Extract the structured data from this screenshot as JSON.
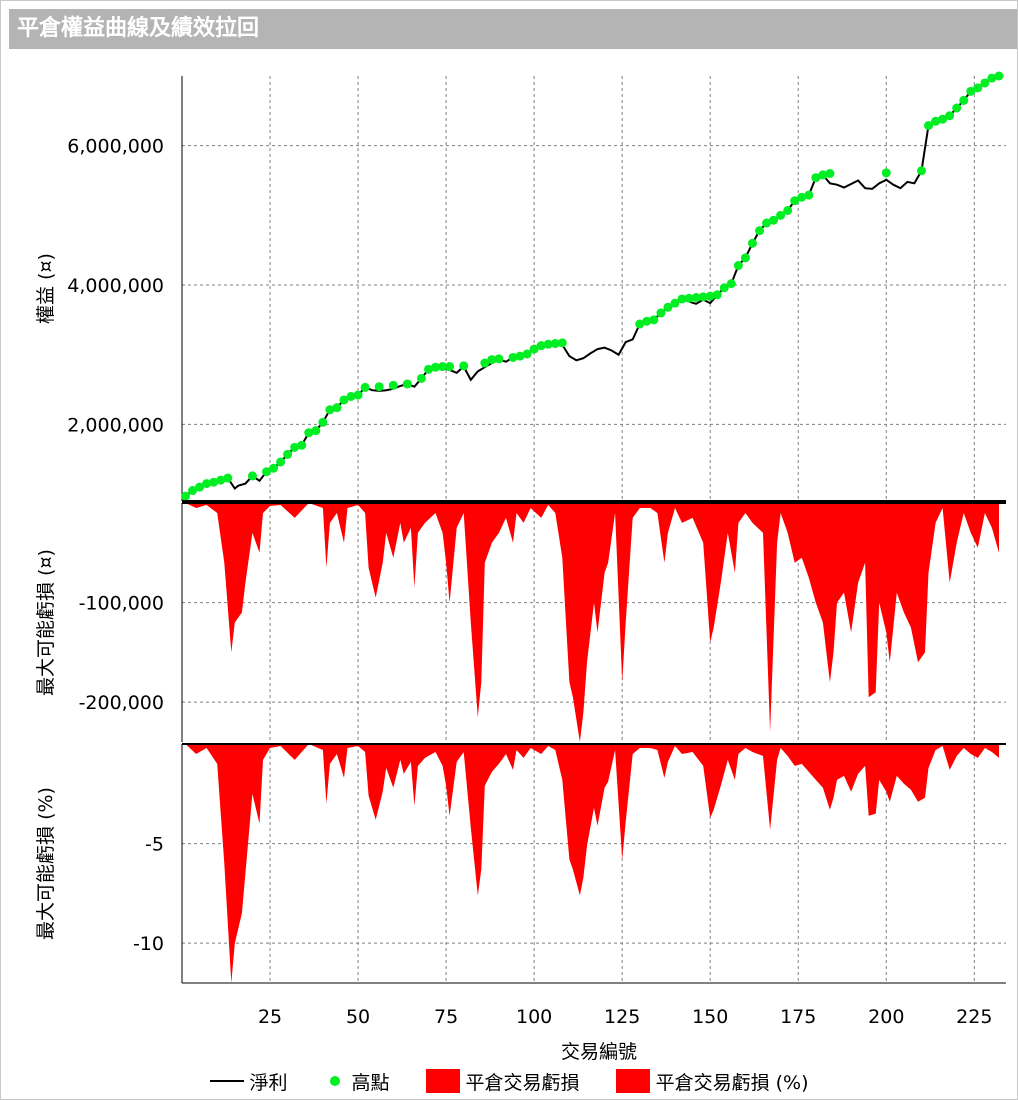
{
  "window": {
    "title": "平倉權益曲線及績效拉回"
  },
  "colors": {
    "line": "#000000",
    "peak": "#00ee22",
    "drawdown": "#ff0000",
    "grid": "#808080"
  },
  "chart_data": [
    {
      "type": "line",
      "title": "",
      "ylabel": "權益 (¤)",
      "ylim": [
        0,
        7000000
      ],
      "yticks": [
        2000000,
        4000000,
        6000000
      ],
      "ytick_labels": [
        "2,000,000",
        "4,000,000",
        "6,000,000"
      ],
      "series": [
        {
          "name": "淨利",
          "x": [
            1,
            3,
            5,
            7,
            9,
            11,
            13,
            15,
            16,
            18,
            20,
            22,
            24,
            26,
            28,
            30,
            32,
            34,
            36,
            38,
            40,
            42,
            44,
            46,
            48,
            50,
            52,
            54,
            56,
            58,
            60,
            62,
            64,
            66,
            68,
            70,
            72,
            74,
            76,
            78,
            80,
            82,
            84,
            86,
            88,
            90,
            92,
            94,
            96,
            98,
            100,
            102,
            104,
            106,
            108,
            110,
            112,
            114,
            116,
            118,
            120,
            122,
            124,
            126,
            128,
            130,
            132,
            134,
            136,
            138,
            140,
            142,
            144,
            146,
            148,
            150,
            152,
            154,
            156,
            158,
            160,
            162,
            164,
            166,
            168,
            170,
            172,
            174,
            176,
            178,
            180,
            182,
            184,
            186,
            188,
            190,
            192,
            194,
            196,
            198,
            200,
            202,
            204,
            206,
            208,
            210,
            212,
            214,
            216,
            218,
            220,
            222,
            224,
            226,
            228,
            230,
            232
          ],
          "values": [
            970000,
            1050000,
            1100000,
            1150000,
            1170000,
            1200000,
            1230000,
            1080000,
            1120000,
            1150000,
            1260000,
            1190000,
            1320000,
            1370000,
            1460000,
            1570000,
            1670000,
            1700000,
            1880000,
            1910000,
            2030000,
            2210000,
            2240000,
            2350000,
            2400000,
            2420000,
            2530000,
            2490000,
            2480000,
            2490000,
            2510000,
            2550000,
            2580000,
            2540000,
            2660000,
            2790000,
            2820000,
            2810000,
            2780000,
            2740000,
            2830000,
            2640000,
            2760000,
            2820000,
            2880000,
            2930000,
            2900000,
            2960000,
            2980000,
            3010000,
            3080000,
            3130000,
            3150000,
            3160000,
            3140000,
            2980000,
            2920000,
            2950000,
            3020000,
            3080000,
            3100000,
            3060000,
            3000000,
            3180000,
            3220000,
            3440000,
            3480000,
            3500000,
            3600000,
            3680000,
            3740000,
            3800000,
            3760000,
            3730000,
            3790000,
            3740000,
            3860000,
            3960000,
            4020000,
            4280000,
            4390000,
            4600000,
            4780000,
            4890000,
            4930000,
            5000000,
            5070000,
            5210000,
            5260000,
            5290000,
            5540000,
            5580000,
            5460000,
            5440000,
            5400000,
            5450000,
            5500000,
            5390000,
            5380000,
            5460000,
            5510000,
            5440000,
            5390000,
            5480000,
            5460000,
            5640000,
            6290000,
            6350000,
            6380000,
            6430000,
            6540000,
            6650000,
            6780000,
            6830000,
            6900000,
            6970000,
            7000000
          ]
        },
        {
          "name": "高點",
          "x": [
            1,
            3,
            5,
            7,
            9,
            11,
            13,
            20,
            24,
            26,
            28,
            30,
            32,
            34,
            36,
            38,
            40,
            42,
            44,
            46,
            48,
            50,
            52,
            56,
            60,
            64,
            68,
            70,
            72,
            74,
            76,
            80,
            86,
            88,
            90,
            94,
            96,
            98,
            100,
            102,
            104,
            106,
            108,
            130,
            132,
            134,
            136,
            138,
            140,
            142,
            144,
            146,
            148,
            150,
            152,
            154,
            156,
            158,
            160,
            162,
            164,
            166,
            168,
            170,
            172,
            174,
            176,
            178,
            180,
            182,
            184,
            200,
            210,
            212,
            214,
            216,
            218,
            220,
            222,
            224,
            226,
            228,
            230,
            232
          ],
          "values": [
            970000,
            1050000,
            1100000,
            1150000,
            1170000,
            1200000,
            1230000,
            1260000,
            1320000,
            1370000,
            1460000,
            1570000,
            1670000,
            1700000,
            1880000,
            1910000,
            2030000,
            2210000,
            2240000,
            2350000,
            2400000,
            2420000,
            2530000,
            2540000,
            2560000,
            2580000,
            2660000,
            2790000,
            2820000,
            2830000,
            2830000,
            2840000,
            2880000,
            2930000,
            2940000,
            2960000,
            2980000,
            3010000,
            3080000,
            3130000,
            3150000,
            3160000,
            3170000,
            3440000,
            3480000,
            3500000,
            3600000,
            3680000,
            3740000,
            3800000,
            3810000,
            3820000,
            3830000,
            3840000,
            3860000,
            3960000,
            4020000,
            4280000,
            4390000,
            4600000,
            4780000,
            4890000,
            4930000,
            5000000,
            5070000,
            5210000,
            5260000,
            5290000,
            5540000,
            5580000,
            5600000,
            5610000,
            5640000,
            6290000,
            6350000,
            6380000,
            6430000,
            6540000,
            6650000,
            6780000,
            6830000,
            6900000,
            6970000,
            7000000
          ]
        }
      ]
    },
    {
      "type": "area",
      "ylabel": "最大可能虧損 (¤)",
      "ylim": [
        -240000,
        0
      ],
      "yticks": [
        -100000,
        -200000
      ],
      "ytick_labels": [
        "-100,000",
        "-200,000"
      ],
      "series": [
        {
          "name": "平倉交易虧損",
          "x": [
            1,
            4,
            7,
            10,
            12,
            14,
            15,
            17,
            18,
            20,
            22,
            23,
            25,
            28,
            32,
            36,
            40,
            41,
            42,
            44,
            46,
            47,
            50,
            52,
            53,
            55,
            57,
            58,
            60,
            62,
            63,
            65,
            66,
            67,
            69,
            72,
            74,
            75,
            76,
            78,
            80,
            82,
            84,
            85,
            86,
            88,
            90,
            92,
            94,
            95,
            97,
            99,
            102,
            104,
            106,
            108,
            110,
            111,
            113,
            114,
            115,
            117,
            118,
            120,
            121,
            123,
            125,
            126,
            128,
            130,
            133,
            135,
            137,
            138,
            140,
            142,
            145,
            148,
            150,
            151,
            153,
            155,
            157,
            158,
            160,
            162,
            165,
            167,
            169,
            170,
            172,
            174,
            176,
            178,
            180,
            182,
            184,
            185,
            186,
            188,
            190,
            192,
            194,
            195,
            197,
            198,
            200,
            201,
            203,
            205,
            207,
            209,
            211,
            212,
            214,
            216,
            218,
            220,
            222,
            224,
            226,
            228,
            230,
            232
          ],
          "values": [
            0,
            -5000,
            -2000,
            -10000,
            -60000,
            -150000,
            -120000,
            -110000,
            -80000,
            -30000,
            -50000,
            -10000,
            -3000,
            -2000,
            -15000,
            0,
            -5000,
            -65000,
            -20000,
            -10000,
            -40000,
            -5000,
            -2000,
            -10000,
            -65000,
            -95000,
            -60000,
            -30000,
            -55000,
            -20000,
            -40000,
            -25000,
            -85000,
            -30000,
            -20000,
            -10000,
            -30000,
            -60000,
            -100000,
            -25000,
            -10000,
            -120000,
            -215000,
            -180000,
            -60000,
            -40000,
            -30000,
            -15000,
            -40000,
            -10000,
            -20000,
            -5000,
            -15000,
            -2000,
            -10000,
            -55000,
            -180000,
            -195000,
            -240000,
            -210000,
            -160000,
            -100000,
            -130000,
            -70000,
            -60000,
            -10000,
            -180000,
            -120000,
            -15000,
            -5000,
            -5000,
            -10000,
            -60000,
            -30000,
            -5000,
            -20000,
            -15000,
            -40000,
            -140000,
            -125000,
            -80000,
            -30000,
            -70000,
            -20000,
            -10000,
            -20000,
            -30000,
            -230000,
            -40000,
            -10000,
            -30000,
            -60000,
            -55000,
            -75000,
            -100000,
            -120000,
            -180000,
            -150000,
            -100000,
            -90000,
            -130000,
            -80000,
            -60000,
            -195000,
            -190000,
            -100000,
            -130000,
            -160000,
            -90000,
            -110000,
            -125000,
            -160000,
            -150000,
            -70000,
            -20000,
            -5000,
            -80000,
            -40000,
            -10000,
            -30000,
            -45000,
            -10000,
            -25000,
            -50000
          ]
        }
      ]
    },
    {
      "type": "area",
      "ylabel": "最大可能虧損 (%)",
      "ylim": [
        -12,
        0
      ],
      "yticks": [
        -5,
        -10
      ],
      "ytick_labels": [
        "-5",
        "-10"
      ],
      "series": [
        {
          "name": "平倉交易虧損 (%)",
          "x": [
            1,
            4,
            7,
            10,
            12,
            14,
            15,
            17,
            18,
            20,
            22,
            23,
            25,
            28,
            32,
            36,
            40,
            41,
            42,
            44,
            46,
            47,
            50,
            52,
            53,
            55,
            57,
            58,
            60,
            62,
            63,
            65,
            66,
            67,
            69,
            72,
            74,
            75,
            76,
            78,
            80,
            82,
            84,
            85,
            86,
            88,
            90,
            92,
            94,
            95,
            97,
            99,
            102,
            104,
            106,
            108,
            110,
            111,
            113,
            114,
            115,
            117,
            118,
            120,
            121,
            123,
            125,
            126,
            128,
            130,
            133,
            135,
            137,
            138,
            140,
            142,
            145,
            148,
            150,
            151,
            153,
            155,
            157,
            158,
            160,
            162,
            165,
            167,
            169,
            170,
            172,
            174,
            176,
            178,
            180,
            182,
            184,
            185,
            186,
            188,
            190,
            192,
            194,
            195,
            197,
            198,
            200,
            201,
            203,
            205,
            207,
            209,
            211,
            212,
            214,
            216,
            218,
            220,
            222,
            224,
            226,
            228,
            230,
            232
          ],
          "values": [
            0,
            -0.5,
            -0.2,
            -1.0,
            -6.0,
            -12.0,
            -10.0,
            -8.5,
            -6.5,
            -2.5,
            -4.0,
            -0.8,
            -0.2,
            -0.1,
            -0.8,
            0,
            -0.3,
            -3.0,
            -1.0,
            -0.5,
            -1.7,
            -0.2,
            -0.1,
            -0.4,
            -2.6,
            -3.8,
            -2.4,
            -1.2,
            -2.2,
            -0.8,
            -1.5,
            -0.9,
            -3.1,
            -1.1,
            -0.7,
            -0.4,
            -1.1,
            -2.1,
            -3.6,
            -0.9,
            -0.4,
            -4.2,
            -7.6,
            -6.3,
            -2.1,
            -1.4,
            -1.0,
            -0.5,
            -1.3,
            -0.3,
            -0.7,
            -0.2,
            -0.5,
            -0.1,
            -0.3,
            -1.8,
            -5.8,
            -6.3,
            -7.6,
            -6.7,
            -5.1,
            -3.2,
            -4.1,
            -2.2,
            -1.9,
            -0.3,
            -5.8,
            -3.9,
            -0.5,
            -0.2,
            -0.2,
            -0.3,
            -1.7,
            -0.9,
            -0.1,
            -0.5,
            -0.4,
            -1.1,
            -3.7,
            -3.3,
            -2.1,
            -0.8,
            -1.8,
            -0.5,
            -0.2,
            -0.4,
            -0.6,
            -4.3,
            -0.8,
            -0.2,
            -0.6,
            -1.1,
            -1.0,
            -1.4,
            -1.8,
            -2.2,
            -3.3,
            -2.7,
            -1.8,
            -1.6,
            -2.4,
            -1.5,
            -1.1,
            -3.6,
            -3.5,
            -1.8,
            -2.4,
            -2.9,
            -1.6,
            -2.0,
            -2.3,
            -2.9,
            -2.7,
            -1.2,
            -0.3,
            -0.1,
            -1.3,
            -0.6,
            -0.2,
            -0.5,
            -0.7,
            -0.2,
            -0.4,
            -0.7
          ]
        }
      ]
    }
  ],
  "xaxis": {
    "label": "交易編號",
    "xlim": [
      0,
      234
    ],
    "ticks": [
      25,
      50,
      75,
      100,
      125,
      150,
      175,
      200,
      225
    ],
    "tick_labels": [
      "25",
      "50",
      "75",
      "100",
      "125",
      "150",
      "175",
      "200",
      "225"
    ]
  },
  "legend": [
    {
      "label": "淨利",
      "marker": "line"
    },
    {
      "label": "高點",
      "marker": "dot"
    },
    {
      "label": "平倉交易虧損",
      "marker": "box"
    },
    {
      "label": "平倉交易虧損 (%)",
      "marker": "box"
    }
  ]
}
